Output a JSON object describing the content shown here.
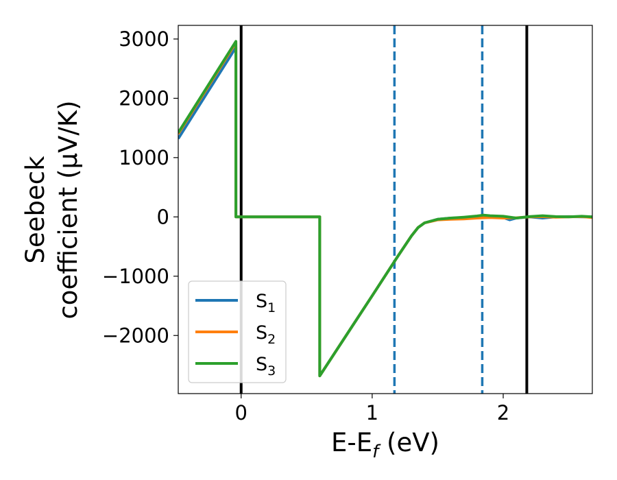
{
  "chart_data": {
    "type": "line",
    "xlabel": "E-E",
    "xlabel_sub": "f",
    "xlabel_suffix": " (eV)",
    "ylabel_line1": "Seebeck",
    "ylabel_line2": "coefficient  (μV/K)",
    "xlim": [
      -0.48,
      2.68
    ],
    "ylim": [
      -2980,
      3230
    ],
    "x_ticks": [
      0,
      1,
      2
    ],
    "x_tick_labels": [
      "0",
      "1",
      "2"
    ],
    "y_ticks": [
      3000,
      2000,
      1000,
      0,
      -1000,
      -2000
    ],
    "y_tick_labels": [
      "3000",
      "2000",
      "1000",
      "0",
      "−1000",
      "−2000"
    ],
    "grid": false,
    "legend_position": "lower-left",
    "vlines": [
      {
        "x": 0.0,
        "style": "solid",
        "color": "#000000"
      },
      {
        "x": 1.17,
        "style": "dashed",
        "color": "#1f77b4"
      },
      {
        "x": 1.84,
        "style": "dashed",
        "color": "#1f77b4"
      },
      {
        "x": 2.18,
        "style": "solid",
        "color": "#000000"
      }
    ],
    "series": [
      {
        "name": "S",
        "name_sub": "1",
        "color": "#1f77b4",
        "x": [
          -0.48,
          -0.04,
          -0.04,
          0.6,
          0.6,
          1.0,
          1.2,
          1.3,
          1.35,
          1.4,
          1.5,
          1.6,
          1.7,
          1.8,
          1.9,
          2.0,
          2.05,
          2.1,
          2.2,
          2.3,
          2.4,
          2.5,
          2.6,
          2.68
        ],
        "y": [
          1320,
          2860,
          0,
          0,
          -2680,
          -1330,
          -650,
          -320,
          -180,
          -100,
          -40,
          -20,
          -15,
          0,
          10,
          -10,
          -50,
          -20,
          0,
          -20,
          0,
          5,
          0,
          0
        ]
      },
      {
        "name": "S",
        "name_sub": "2",
        "color": "#ff7f0e",
        "x": [
          -0.48,
          -0.04,
          -0.04,
          0.6,
          0.6,
          1.0,
          1.2,
          1.3,
          1.35,
          1.4,
          1.5,
          1.6,
          1.7,
          1.8,
          1.9,
          2.0,
          2.1,
          2.2,
          2.3,
          2.4,
          2.5,
          2.6,
          2.68
        ],
        "y": [
          1400,
          2940,
          0,
          0,
          -2680,
          -1330,
          -650,
          -320,
          -180,
          -100,
          -50,
          -40,
          -35,
          -20,
          -10,
          -20,
          -15,
          0,
          5,
          -5,
          0,
          5,
          -10
        ]
      },
      {
        "name": "S",
        "name_sub": "3",
        "color": "#2ca02c",
        "x": [
          -0.48,
          -0.04,
          -0.04,
          0.6,
          0.6,
          1.0,
          1.2,
          1.3,
          1.35,
          1.4,
          1.5,
          1.6,
          1.7,
          1.8,
          1.85,
          1.9,
          2.0,
          2.1,
          2.2,
          2.3,
          2.4,
          2.5,
          2.6,
          2.68
        ],
        "y": [
          1420,
          2960,
          0,
          0,
          -2680,
          -1330,
          -650,
          -320,
          -180,
          -100,
          -40,
          -20,
          -5,
          15,
          30,
          20,
          10,
          -20,
          5,
          20,
          5,
          0,
          10,
          0
        ]
      }
    ]
  }
}
